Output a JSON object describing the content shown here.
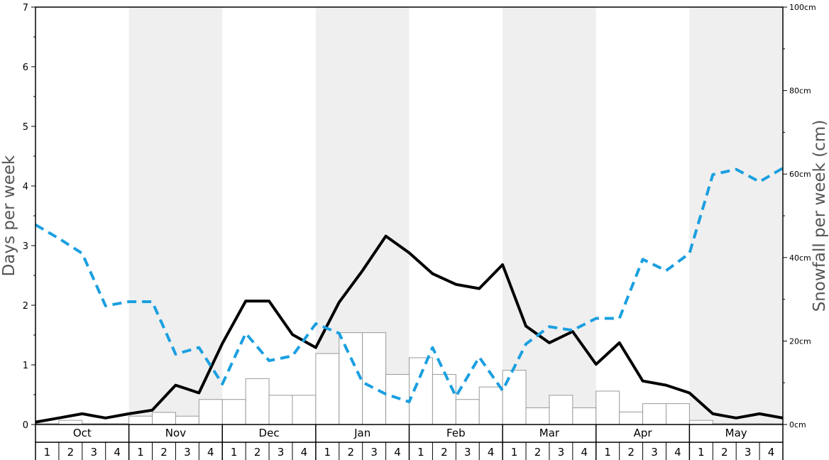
{
  "chart_data": {
    "type": "bar+line",
    "left_axis": {
      "label": "Days per week",
      "range": [
        0,
        7
      ],
      "ticks": [
        "0",
        "1",
        "2",
        "3",
        "4",
        "5",
        "6",
        "7"
      ]
    },
    "right_axis": {
      "label": "Snowfall per week (cm)",
      "range": [
        0,
        100
      ],
      "ticks": [
        "0cm",
        "20cm",
        "40cm",
        "60cm",
        "80cm",
        "100cm"
      ]
    },
    "months": [
      "Oct",
      "Nov",
      "Dec",
      "Jan",
      "Feb",
      "Mar",
      "Apr",
      "May"
    ],
    "weeks": [
      "1",
      "2",
      "3",
      "4"
    ],
    "colors": {
      "band": "#efefef",
      "bar_fill": "#ffffff",
      "bar_stroke": "#999999",
      "black_line": "#000000",
      "blue_line": "#1a9fe0"
    },
    "series": [
      {
        "type": "bar",
        "axis": "right",
        "values": [
          0.2,
          1.0,
          0.2,
          0.2,
          2.0,
          2.9,
          2.0,
          6.0,
          6.0,
          11.0,
          7.0,
          7.0,
          17.0,
          22.0,
          22.0,
          12.0,
          16.0,
          12.0,
          6.0,
          9.0,
          13.0,
          4.0,
          7.0,
          4.0,
          8.0,
          3.0,
          5.0,
          5.0,
          1.0,
          0.2,
          0.2,
          0.2
        ]
      },
      {
        "type": "line",
        "style": "solid",
        "color": "black",
        "axis": "left",
        "values": [
          0.04,
          0.11,
          0.18,
          0.11,
          0.18,
          0.24,
          0.66,
          0.53,
          1.36,
          2.07,
          2.07,
          1.51,
          1.29,
          2.05,
          2.58,
          3.16,
          2.88,
          2.53,
          2.35,
          2.28,
          2.68,
          1.65,
          1.37,
          1.56,
          1.01,
          1.37,
          0.73,
          0.66,
          0.53,
          0.18,
          0.11,
          0.18,
          0.11
        ]
      },
      {
        "type": "line",
        "style": "dashed",
        "color": "blue",
        "axis": "left",
        "values": [
          3.35,
          3.12,
          2.87,
          1.99,
          2.06,
          2.06,
          1.18,
          1.29,
          0.68,
          1.53,
          1.07,
          1.15,
          1.69,
          1.53,
          0.71,
          0.51,
          0.38,
          1.29,
          0.47,
          1.13,
          0.57,
          1.35,
          1.64,
          1.58,
          1.78,
          1.78,
          2.77,
          2.58,
          2.87,
          4.19,
          4.28,
          4.07,
          4.3
        ]
      }
    ]
  }
}
